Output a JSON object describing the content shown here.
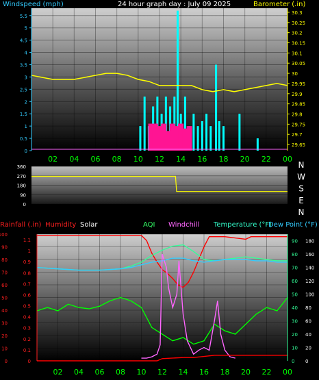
{
  "top": {
    "left_title": "Windspeed (mph)",
    "center_title": "24 hour graph day : July 09 2025",
    "right_title": "Barometer (.in)",
    "left_ticks": [
      "5.5",
      "5",
      "4.5",
      "4",
      "3.5",
      "3",
      "2.5",
      "2",
      "1.5",
      "1",
      "0.5",
      "0"
    ],
    "right_ticks": [
      "30.3",
      "30.25",
      "30.2",
      "30.15",
      "30.1",
      "30.05",
      "30",
      "29.95",
      "29.9",
      "29.85",
      "29.8",
      "29.75",
      "29.7",
      "29.65"
    ],
    "x_ticks": [
      "02",
      "04",
      "06",
      "08",
      "10",
      "12",
      "14",
      "16",
      "18",
      "20",
      "22",
      "00"
    ]
  },
  "middle": {
    "left_ticks": [
      "360",
      "270",
      "180",
      "90",
      "0"
    ],
    "compass": [
      "N",
      "W",
      "S",
      "E",
      "N"
    ]
  },
  "bottom": {
    "legend": {
      "rainfall": "Rainfall (.in)",
      "humidity": "Humidity",
      "solar": "Solar",
      "aqi": "AQI",
      "windchill": "Windchill",
      "temperature": "Temperature (°F)",
      "dewpoint": "Dew Point (°F)"
    },
    "hum_ticks": [
      "100",
      "90",
      "80",
      "70",
      "60",
      "50",
      "40",
      "30",
      "20",
      "10",
      "0"
    ],
    "rain_ticks": [
      "1.1",
      "1",
      "0.9",
      "0.8",
      "0.7",
      "0.6",
      "0.5",
      "0.4",
      "0.3",
      "0.2",
      "0.1",
      "0"
    ],
    "temp_ticks": [
      "90",
      "80",
      "70",
      "60",
      "50",
      "40",
      "30",
      "20",
      "10",
      "0"
    ],
    "solar_ticks": [
      "180",
      "160",
      "140",
      "120",
      "100",
      "80",
      "60",
      "40",
      "20",
      "0"
    ],
    "x_ticks": [
      "02",
      "04",
      "06",
      "08",
      "10",
      "12",
      "14",
      "16",
      "18",
      "20",
      "22",
      "00"
    ]
  },
  "colors": {
    "wind": "#00ffff",
    "gust": "#ff1493",
    "baro": "#ffff00",
    "direction": "#ffff00",
    "humidity": "#ff0000",
    "temperature": "#33ff99",
    "dewpoint": "#33ccff",
    "aqi": "#00ff00",
    "windchill": "#ff66ff",
    "rain": "#ff0000",
    "axis_green": "#00ff00"
  },
  "chart_data": [
    {
      "type": "line",
      "title": "24 hour graph day : July 09 2025",
      "x_unit": "hour",
      "series": [
        {
          "name": "Barometer (.in)",
          "axis": "right",
          "points": [
            [
              0,
              29.99
            ],
            [
              1,
              29.98
            ],
            [
              2,
              29.97
            ],
            [
              3,
              29.97
            ],
            [
              4,
              29.97
            ],
            [
              5,
              29.98
            ],
            [
              6,
              29.99
            ],
            [
              7,
              30.0
            ],
            [
              8,
              30.0
            ],
            [
              9,
              29.99
            ],
            [
              10,
              29.97
            ],
            [
              11,
              29.96
            ],
            [
              12,
              29.94
            ],
            [
              13,
              29.94
            ],
            [
              14,
              29.94
            ],
            [
              15,
              29.94
            ],
            [
              16,
              29.92
            ],
            [
              17,
              29.91
            ],
            [
              18,
              29.92
            ],
            [
              19,
              29.91
            ],
            [
              20,
              29.92
            ],
            [
              21,
              29.93
            ],
            [
              22,
              29.94
            ],
            [
              23,
              29.95
            ],
            [
              24,
              29.94
            ]
          ]
        },
        {
          "name": "Windspeed (mph)",
          "axis": "left",
          "points": [
            [
              10.2,
              1.0
            ],
            [
              10.6,
              2.2
            ],
            [
              11.0,
              1.0
            ],
            [
              11.4,
              1.8
            ],
            [
              11.8,
              2.2
            ],
            [
              12.2,
              1.5
            ],
            [
              12.6,
              2.2
            ],
            [
              13.0,
              1.8
            ],
            [
              13.4,
              2.2
            ],
            [
              13.7,
              5.7
            ],
            [
              14.0,
              1.5
            ],
            [
              14.4,
              2.2
            ],
            [
              14.8,
              1.0
            ],
            [
              15.2,
              1.5
            ],
            [
              15.6,
              1.0
            ],
            [
              16.0,
              1.2
            ],
            [
              16.4,
              1.5
            ],
            [
              16.8,
              1.0
            ],
            [
              17.3,
              3.5
            ],
            [
              17.6,
              1.2
            ],
            [
              18.0,
              1.0
            ],
            [
              19.5,
              1.5
            ],
            [
              21.2,
              0.5
            ]
          ]
        },
        {
          "name": "Gust",
          "axis": "left",
          "points": [
            [
              11.2,
              1.1
            ],
            [
              11.6,
              1.1
            ],
            [
              12.0,
              1.0
            ],
            [
              12.4,
              1.1
            ],
            [
              12.8,
              0.8
            ],
            [
              13.2,
              1.1
            ],
            [
              13.6,
              1.0
            ],
            [
              14.0,
              1.1
            ],
            [
              14.4,
              0.9
            ],
            [
              14.8,
              1.0
            ]
          ]
        }
      ],
      "left_range": [
        0,
        5.8
      ],
      "right_range": [
        29.62,
        30.32
      ]
    },
    {
      "type": "line",
      "x_unit": "hour",
      "series": [
        {
          "name": "Wind Direction",
          "points": [
            [
              0,
              265
            ],
            [
              13.5,
              265
            ],
            [
              13.6,
              120
            ],
            [
              24,
              120
            ]
          ]
        }
      ],
      "y_range": [
        0,
        360
      ]
    },
    {
      "type": "line",
      "x_unit": "hour",
      "series": [
        {
          "name": "Humidity",
          "axis": "hum",
          "points": [
            [
              0,
              99
            ],
            [
              10,
              99
            ],
            [
              10.5,
              95
            ],
            [
              11,
              85
            ],
            [
              11.5,
              78
            ],
            [
              12,
              72
            ],
            [
              12.5,
              69
            ],
            [
              13,
              65
            ],
            [
              13.5,
              60
            ],
            [
              14,
              58
            ],
            [
              14.5,
              62
            ],
            [
              15,
              70
            ],
            [
              15.5,
              80
            ],
            [
              16,
              90
            ],
            [
              16.5,
              98
            ],
            [
              17,
              98
            ],
            [
              18,
              98
            ],
            [
              19,
              97
            ],
            [
              20,
              96
            ],
            [
              20.5,
              98
            ],
            [
              24,
              98
            ]
          ]
        },
        {
          "name": "Temperature (°F)",
          "axis": "temp",
          "points": [
            [
              0,
              70
            ],
            [
              2,
              69
            ],
            [
              4,
              68
            ],
            [
              6,
              68
            ],
            [
              8,
              69
            ],
            [
              9,
              71
            ],
            [
              10,
              74
            ],
            [
              11,
              79
            ],
            [
              12,
              83
            ],
            [
              13,
              86
            ],
            [
              14,
              87
            ],
            [
              15,
              82
            ],
            [
              16,
              76
            ],
            [
              17,
              75
            ],
            [
              18,
              76
            ],
            [
              19,
              77
            ],
            [
              20,
              78
            ],
            [
              21,
              77
            ],
            [
              22,
              76
            ],
            [
              23,
              75
            ],
            [
              24,
              75
            ]
          ]
        },
        {
          "name": "Dew Point (°F)",
          "axis": "temp",
          "points": [
            [
              0,
              70
            ],
            [
              2,
              69
            ],
            [
              4,
              68
            ],
            [
              6,
              68
            ],
            [
              8,
              69
            ],
            [
              9,
              70
            ],
            [
              10,
              72
            ],
            [
              11,
              74
            ],
            [
              12,
              75
            ],
            [
              13,
              77
            ],
            [
              14,
              77
            ],
            [
              15,
              75
            ],
            [
              16,
              74
            ],
            [
              17,
              75
            ],
            [
              18,
              76
            ],
            [
              19,
              76
            ],
            [
              20,
              76
            ],
            [
              21,
              75
            ],
            [
              22,
              75
            ],
            [
              23,
              74
            ],
            [
              24,
              74
            ]
          ]
        },
        {
          "name": "AQI",
          "axis": "solar",
          "points": [
            [
              0,
              75
            ],
            [
              1,
              80
            ],
            [
              2,
              75
            ],
            [
              3,
              85
            ],
            [
              4,
              80
            ],
            [
              5,
              78
            ],
            [
              6,
              82
            ],
            [
              7,
              90
            ],
            [
              8,
              95
            ],
            [
              9,
              90
            ],
            [
              10,
              80
            ],
            [
              11,
              50
            ],
            [
              12,
              40
            ],
            [
              13,
              30
            ],
            [
              14,
              35
            ],
            [
              15,
              25
            ],
            [
              16,
              30
            ],
            [
              17,
              55
            ],
            [
              18,
              45
            ],
            [
              19,
              40
            ],
            [
              20,
              55
            ],
            [
              21,
              70
            ],
            [
              22,
              80
            ],
            [
              23,
              75
            ],
            [
              24,
              95
            ]
          ]
        },
        {
          "name": "Windchill",
          "axis": "temp",
          "points": [
            [
              10,
              2
            ],
            [
              10.5,
              2
            ],
            [
              11,
              3
            ],
            [
              11.5,
              5
            ],
            [
              11.8,
              12
            ],
            [
              12,
              80
            ],
            [
              12.4,
              70
            ],
            [
              12.6,
              55
            ],
            [
              13,
              40
            ],
            [
              13.4,
              50
            ],
            [
              13.6,
              75
            ],
            [
              14,
              35
            ],
            [
              14.4,
              15
            ],
            [
              15,
              5
            ],
            [
              15.5,
              8
            ],
            [
              16,
              10
            ],
            [
              16.5,
              8
            ],
            [
              17,
              30
            ],
            [
              17.3,
              45
            ],
            [
              17.6,
              20
            ],
            [
              18,
              8
            ],
            [
              18.5,
              3
            ],
            [
              19,
              2
            ]
          ]
        },
        {
          "name": "Rainfall (.in)",
          "axis": "rain",
          "points": [
            [
              0,
              0
            ],
            [
              11.5,
              0
            ],
            [
              12,
              0.02
            ],
            [
              14,
              0.03
            ],
            [
              15,
              0.03
            ],
            [
              16,
              0.04
            ],
            [
              17,
              0.05
            ],
            [
              24,
              0.05
            ]
          ]
        }
      ],
      "hum_range": [
        0,
        100
      ],
      "temp_range": [
        0,
        95
      ],
      "solar_range": [
        0,
        190
      ],
      "rain_range": [
        0,
        1.15
      ]
    }
  ]
}
